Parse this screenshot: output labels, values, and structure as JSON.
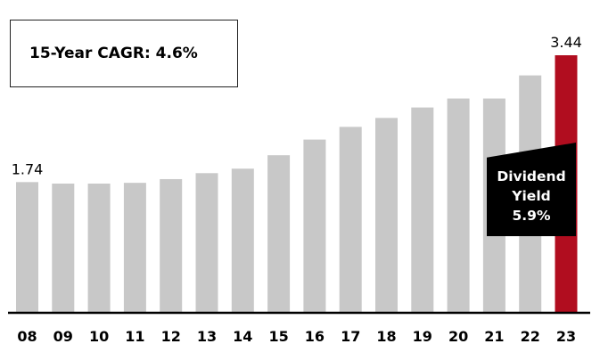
{
  "cagr_label": "15-Year CAGR: 4.6%",
  "dividend_yield": {
    "line1": "Dividend",
    "line2": "Yield",
    "line3": "5.9%"
  },
  "chart_data": {
    "type": "bar",
    "categories": [
      "08",
      "09",
      "10",
      "11",
      "12",
      "13",
      "14",
      "15",
      "16",
      "17",
      "18",
      "19",
      "20",
      "21",
      "22",
      "23"
    ],
    "values": [
      1.74,
      1.72,
      1.72,
      1.73,
      1.78,
      1.86,
      1.92,
      2.1,
      2.31,
      2.48,
      2.6,
      2.74,
      2.86,
      2.86,
      3.17,
      3.44
    ],
    "data_labels": {
      "0": "1.74",
      "15": "3.44"
    },
    "ylim": [
      0,
      3.44
    ],
    "colors": {
      "bar": "#c8c8c8",
      "highlight": "#b10d1f",
      "axis": "#000000"
    },
    "highlight_index": 15,
    "title": "",
    "xlabel": "",
    "ylabel": "",
    "grid": false
  }
}
